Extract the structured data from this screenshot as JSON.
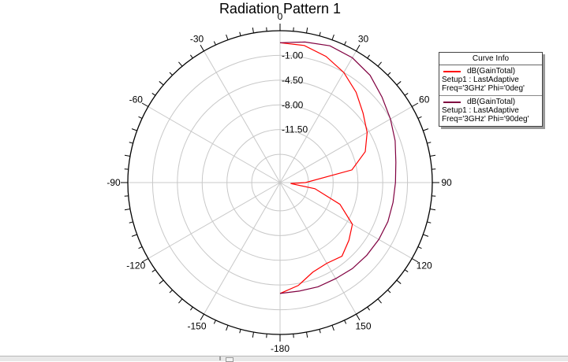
{
  "chart_data": {
    "type": "polar",
    "title": "Radiation Pattern 1",
    "angle_labels": [
      {
        "angle": 0,
        "text": "0"
      },
      {
        "angle": 30,
        "text": "30"
      },
      {
        "angle": 60,
        "text": "60"
      },
      {
        "angle": 90,
        "text": "90"
      },
      {
        "angle": 120,
        "text": "120"
      },
      {
        "angle": 150,
        "text": "150"
      },
      {
        "angle": 180,
        "text": "-180"
      },
      {
        "angle": -150,
        "text": "-150"
      },
      {
        "angle": -120,
        "text": "-120"
      },
      {
        "angle": -90,
        "text": "-90"
      },
      {
        "angle": -60,
        "text": "-60"
      },
      {
        "angle": -30,
        "text": "-30"
      }
    ],
    "radial_ticks": [
      {
        "value": -1.0,
        "text": "-1.00"
      },
      {
        "value": -4.5,
        "text": "-4.50"
      },
      {
        "value": -8.0,
        "text": "-8.00"
      },
      {
        "value": -11.5,
        "text": "-11.50"
      }
    ],
    "r_range": [
      -19.0,
      2.5
    ],
    "grid": true,
    "legend_title": "Curve Info",
    "series": [
      {
        "name": "dB(GainTotal)",
        "setup": "Setup1 : LastAdaptive",
        "freq": "Freq='3GHz' Phi='0deg'",
        "color": "#ff0000",
        "theta": [
          0,
          10,
          20,
          30,
          40,
          50,
          60,
          70,
          80,
          90,
          95,
          100,
          110,
          120,
          130,
          140,
          150,
          160,
          170,
          180
        ],
        "r": [
          0.8,
          0.7,
          0.0,
          -1.0,
          -2.3,
          -3.7,
          -4.8,
          -6.2,
          -8.7,
          -15.4,
          -17.5,
          -14.0,
          -10.0,
          -7.2,
          -6.3,
          -5.4,
          -5.8,
          -5.5,
          -4.2,
          -3.3
        ]
      },
      {
        "name": "dB(GainTotal)",
        "setup": "Setup1 : LastAdaptive",
        "freq": "Freq='3GHz' Phi='90deg'",
        "color": "#800040",
        "theta": [
          0,
          10,
          20,
          30,
          40,
          50,
          60,
          70,
          80,
          90,
          100,
          110,
          120,
          130,
          140,
          150,
          160,
          170,
          180
        ],
        "r": [
          0.8,
          1.2,
          1.6,
          1.4,
          0.8,
          -0.2,
          -1.0,
          -1.7,
          -2.4,
          -2.7,
          -2.8,
          -2.8,
          -2.9,
          -3.0,
          -3.1,
          -3.3,
          -3.3,
          -3.4,
          -3.3
        ]
      }
    ]
  }
}
